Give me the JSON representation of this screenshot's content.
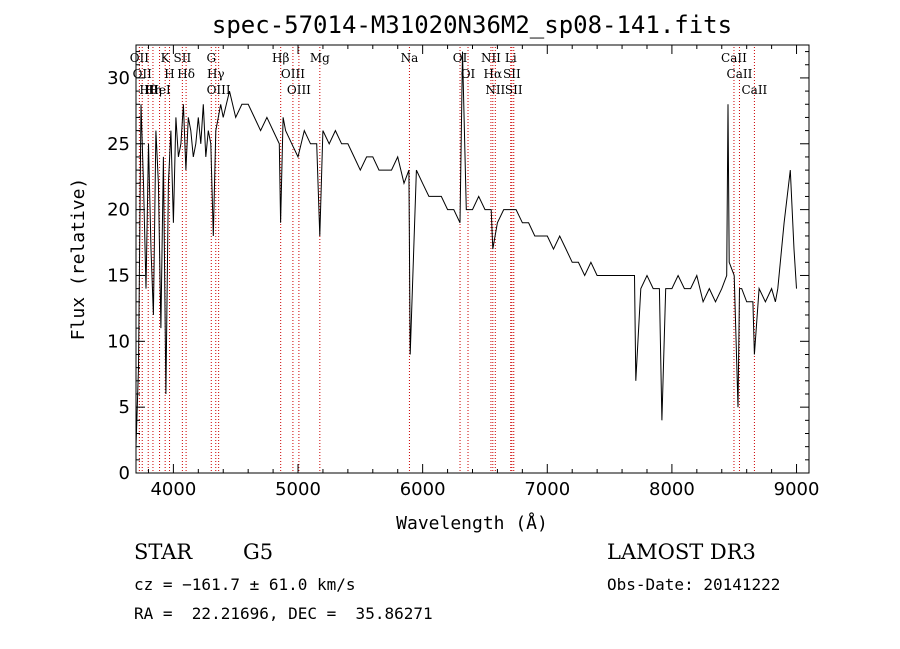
{
  "title": "spec-57014-M31020N36M2_sp08-141.fits",
  "info": {
    "class": "STAR",
    "subclass": "G5",
    "cz": "cz = −161.7 ± 61.0 km/s",
    "radec": "RA =  22.21696, DEC =  35.86271",
    "survey": "LAMOST DR3",
    "obsdate": "Obs-Date: 20141222"
  },
  "chart_data": {
    "type": "line",
    "title": "spec-57014-M31020N36M2_sp08-141.fits",
    "xlabel": "Wavelength (Å)",
    "ylabel": "Flux (relative)",
    "xlim": [
      3700,
      9100
    ],
    "ylim": [
      0,
      32.5
    ],
    "xticks": [
      4000,
      5000,
      6000,
      7000,
      8000,
      9000
    ],
    "yticks": [
      0,
      5,
      10,
      15,
      20,
      25,
      30
    ],
    "line_color": "#000000",
    "marker_color": "#cc0000",
    "series": [
      {
        "x": [
          3700,
          3720,
          3740,
          3760,
          3780,
          3800,
          3820,
          3840,
          3860,
          3880,
          3900,
          3920,
          3940,
          3960,
          3980,
          4000,
          4020,
          4040,
          4060,
          4080,
          4100,
          4120,
          4140,
          4160,
          4180,
          4200,
          4220,
          4240,
          4260,
          4280,
          4300,
          4320,
          4340,
          4360,
          4380,
          4400,
          4450,
          4500,
          4550,
          4600,
          4650,
          4700,
          4750,
          4800,
          4850,
          4860,
          4880,
          4900,
          4950,
          5000,
          5050,
          5100,
          5150,
          5175,
          5200,
          5250,
          5300,
          5350,
          5400,
          5450,
          5500,
          5550,
          5600,
          5650,
          5700,
          5750,
          5800,
          5850,
          5890,
          5900,
          5950,
          6000,
          6050,
          6100,
          6150,
          6200,
          6250,
          6300,
          6320,
          6350,
          6400,
          6450,
          6500,
          6550,
          6563,
          6600,
          6650,
          6700,
          6750,
          6800,
          6850,
          6900,
          6950,
          7000,
          7050,
          7100,
          7150,
          7200,
          7250,
          7300,
          7350,
          7400,
          7450,
          7500,
          7550,
          7600,
          7650,
          7700,
          7710,
          7750,
          7800,
          7850,
          7900,
          7920,
          7950,
          8000,
          8050,
          8100,
          8150,
          8200,
          8250,
          8300,
          8350,
          8400,
          8440,
          8450,
          8460,
          8500,
          8530,
          8542,
          8560,
          8600,
          8650,
          8662,
          8700,
          8750,
          8800,
          8830,
          8850,
          8900,
          8950,
          8980,
          9000
        ],
        "y": [
          2,
          8,
          28,
          22,
          14,
          25,
          17,
          12,
          26,
          22,
          11,
          24,
          6,
          22,
          26,
          19,
          27,
          24,
          25,
          28,
          23,
          27,
          26,
          24,
          25,
          27,
          25,
          28,
          24,
          26,
          25,
          18,
          26,
          27,
          28,
          27,
          29,
          27,
          28,
          28,
          27,
          26,
          27,
          26,
          25,
          19,
          27,
          26,
          25,
          24,
          26,
          25,
          25,
          18,
          26,
          25,
          26,
          25,
          25,
          24,
          23,
          24,
          24,
          23,
          23,
          23,
          24,
          22,
          23,
          9,
          23,
          22,
          21,
          21,
          21,
          20,
          20,
          19,
          32,
          20,
          20,
          21,
          20,
          20,
          17,
          19,
          20,
          20,
          20,
          19,
          19,
          18,
          18,
          18,
          17,
          18,
          17,
          16,
          16,
          15,
          16,
          15,
          15,
          15,
          15,
          15,
          15,
          15,
          7,
          14,
          15,
          14,
          14,
          4,
          14,
          14,
          15,
          14,
          14,
          15,
          13,
          14,
          13,
          14,
          15,
          28,
          16,
          15,
          5,
          14,
          14,
          13,
          13,
          9,
          14,
          13,
          14,
          13,
          14,
          19,
          23,
          17,
          14
        ]
      }
    ],
    "emission_lines": [
      {
        "wavelength": 3727,
        "label": "OII"
      },
      {
        "wavelength": 3750,
        "label": "OII"
      },
      {
        "wavelength": 3798,
        "label": "Hθ"
      },
      {
        "wavelength": 3836,
        "label": "Hη"
      },
      {
        "wavelength": 3889,
        "label": "HeI"
      },
      {
        "wavelength": 3934,
        "label": "K"
      },
      {
        "wavelength": 3969,
        "label": "H"
      },
      {
        "wavelength": 4072,
        "label": "SII"
      },
      {
        "wavelength": 4102,
        "label": "Hδ"
      },
      {
        "wavelength": 4304,
        "label": "G"
      },
      {
        "wavelength": 4340,
        "label": "Hγ"
      },
      {
        "wavelength": 4363,
        "label": "OIII"
      },
      {
        "wavelength": 4861,
        "label": "Hβ"
      },
      {
        "wavelength": 4959,
        "label": "OIII"
      },
      {
        "wavelength": 5007,
        "label": "OIII"
      },
      {
        "wavelength": 5175,
        "label": "Mg"
      },
      {
        "wavelength": 5894,
        "label": "Na"
      },
      {
        "wavelength": 6300,
        "label": "OI"
      },
      {
        "wavelength": 6364,
        "label": "OI"
      },
      {
        "wavelength": 6548,
        "label": "NII"
      },
      {
        "wavelength": 6563,
        "label": "Hα"
      },
      {
        "wavelength": 6583,
        "label": "NII"
      },
      {
        "wavelength": 6707,
        "label": "Li"
      },
      {
        "wavelength": 6716,
        "label": "SII"
      },
      {
        "wavelength": 6731,
        "label": "SII"
      },
      {
        "wavelength": 8498,
        "label": "CaII"
      },
      {
        "wavelength": 8542,
        "label": "CaII"
      },
      {
        "wavelength": 8662,
        "label": "CaII"
      }
    ]
  }
}
